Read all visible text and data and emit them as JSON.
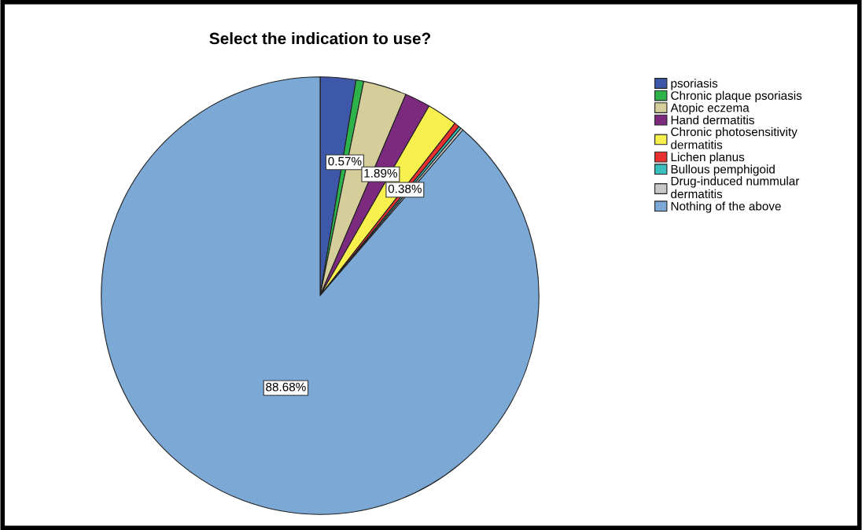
{
  "chart_data": {
    "type": "pie",
    "title": "Select the indication to use?",
    "categories": [
      "psoriasis",
      "Chronic plaque psoriasis",
      "Atopic eczema",
      "Hand dermatitis",
      "Chronic photosensitivity dermatitis",
      "Lichen planus",
      "Bullous pemphigoid",
      "Drug-induced nummular dermatitis",
      "Nothing of the above"
    ],
    "values": [
      2.63,
      0.57,
      3.21,
      1.89,
      2.26,
      0.38,
      0.19,
      0.19,
      88.68
    ],
    "colors": [
      "#3d58a8",
      "#2db34a",
      "#d5cd9a",
      "#7b2a7e",
      "#f8f04c",
      "#e8302e",
      "#3bbfbf",
      "#c8c8c8",
      "#7ba8d5"
    ],
    "value_labels": [
      null,
      "0.57%",
      null,
      "1.89%",
      null,
      "0.38%",
      null,
      null,
      "88.68%"
    ],
    "legend": "right"
  }
}
